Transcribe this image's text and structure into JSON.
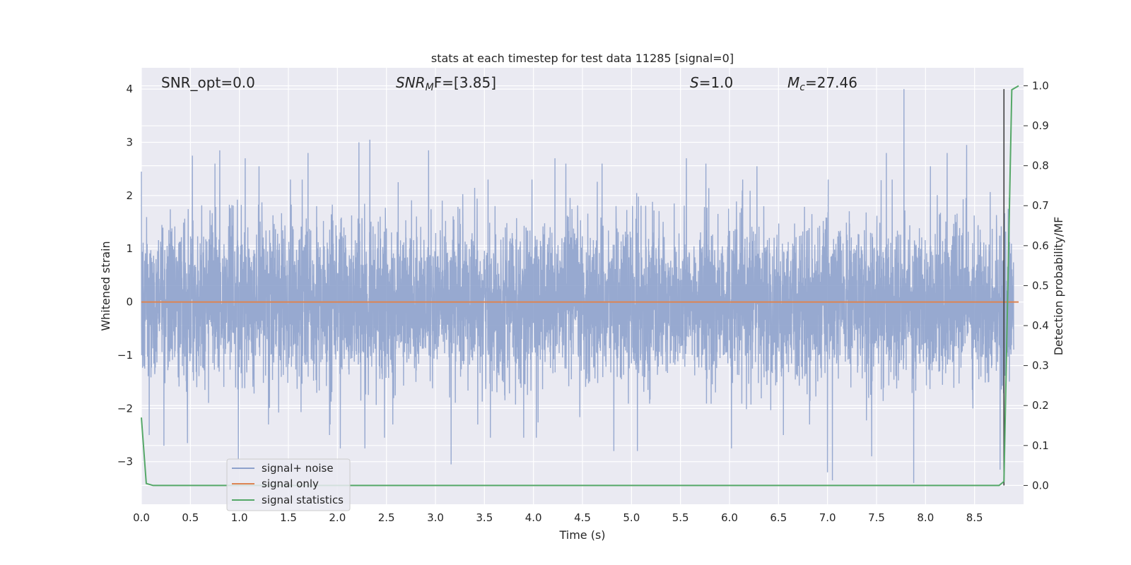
{
  "chart_data": {
    "type": "line",
    "title": "stats at each timestep for test data 11285 [signal=0]",
    "xlabel": "Time (s)",
    "ylabel": "Whitened strain",
    "y2label": "Detection probability/MF",
    "xlim": [
      0.0,
      9.0
    ],
    "ylim": [
      -3.8,
      4.4
    ],
    "y2lim": [
      -0.047,
      1.045
    ],
    "x_ticks": [
      "0.0",
      "0.5",
      "1.0",
      "1.5",
      "2.0",
      "2.5",
      "3.0",
      "3.5",
      "4.0",
      "4.5",
      "5.0",
      "5.5",
      "6.0",
      "6.5",
      "7.0",
      "7.5",
      "8.0",
      "8.5"
    ],
    "y_ticks": [
      "4",
      "3",
      "2",
      "1",
      "0",
      "−1",
      "−2",
      "−3"
    ],
    "y2_ticks": [
      "1.0",
      "0.9",
      "0.8",
      "0.7",
      "0.6",
      "0.5",
      "0.4",
      "0.3",
      "0.2",
      "0.1",
      "0.0"
    ],
    "grid": true,
    "legend_position": "lower-left",
    "annotations": {
      "snr_opt": "SNR_opt=0.0",
      "snr_mf_label": "SNR",
      "snr_mf_sub": "M",
      "snr_mf_suffix": "F=[3.85]",
      "s_label": "S",
      "s_value": "=1.0",
      "mc_label": "M",
      "mc_sub": "c",
      "mc_value": "=27.46"
    },
    "series": [
      {
        "name": "signal+ noise",
        "color": "#8ea2cc",
        "description_values": "whitened noise, approx. N(0,1), peak 4.0 at x=7.78, min -3.4 at x=7.88",
        "sample_rate": 2048,
        "duration": 8.9,
        "peaks": [
          [
            0.0,
            2.45
          ],
          [
            0.08,
            -2.5
          ],
          [
            0.23,
            -2.7
          ],
          [
            0.47,
            -2.65
          ],
          [
            0.52,
            2.75
          ],
          [
            0.75,
            2.6
          ],
          [
            0.8,
            2.85
          ],
          [
            0.99,
            -2.95
          ],
          [
            1.06,
            2.7
          ],
          [
            1.2,
            2.55
          ],
          [
            1.52,
            2.3
          ],
          [
            1.7,
            2.8
          ],
          [
            1.92,
            -2.5
          ],
          [
            2.03,
            -2.75
          ],
          [
            2.22,
            3.0
          ],
          [
            2.28,
            -2.75
          ],
          [
            2.33,
            3.05
          ],
          [
            2.48,
            -2.55
          ],
          [
            2.62,
            2.25
          ],
          [
            2.93,
            2.85
          ],
          [
            3.16,
            -3.05
          ],
          [
            3.56,
            -2.55
          ],
          [
            3.9,
            -2.55
          ],
          [
            4.03,
            -2.55
          ],
          [
            4.22,
            2.7
          ],
          [
            4.33,
            2.6
          ],
          [
            4.7,
            2.6
          ],
          [
            4.82,
            -2.8
          ],
          [
            5.06,
            -2.8
          ],
          [
            5.56,
            2.7
          ],
          [
            5.76,
            2.6
          ],
          [
            6.02,
            -2.75
          ],
          [
            6.28,
            2.55
          ],
          [
            6.55,
            -2.5
          ],
          [
            7.0,
            -3.2
          ],
          [
            7.05,
            -3.35
          ],
          [
            7.45,
            -2.9
          ],
          [
            7.6,
            2.8
          ],
          [
            7.78,
            4.0
          ],
          [
            7.88,
            -3.4
          ],
          [
            8.05,
            2.55
          ],
          [
            8.22,
            2.8
          ],
          [
            8.42,
            2.95
          ],
          [
            8.76,
            -3.15
          ]
        ]
      },
      {
        "name": "signal only",
        "color": "#dd8452",
        "x": [
          0.0,
          8.95
        ],
        "y": [
          0.0,
          0.0
        ]
      },
      {
        "name": "signal statistics",
        "color": "#55a868",
        "axis": "y2",
        "x": [
          0.0,
          0.05,
          0.12,
          0.5,
          1.0,
          2.0,
          3.0,
          4.0,
          5.0,
          6.0,
          7.0,
          8.0,
          8.5,
          8.75,
          8.8,
          8.88,
          8.95
        ],
        "y": [
          0.17,
          0.005,
          0.0,
          0.0,
          0.0,
          0.0,
          0.0,
          0.0,
          0.0,
          0.0,
          0.0,
          0.0,
          0.0,
          0.0,
          0.01,
          0.99,
          1.0
        ]
      }
    ],
    "marker_line": {
      "x": 8.8,
      "color": "#404040"
    }
  }
}
